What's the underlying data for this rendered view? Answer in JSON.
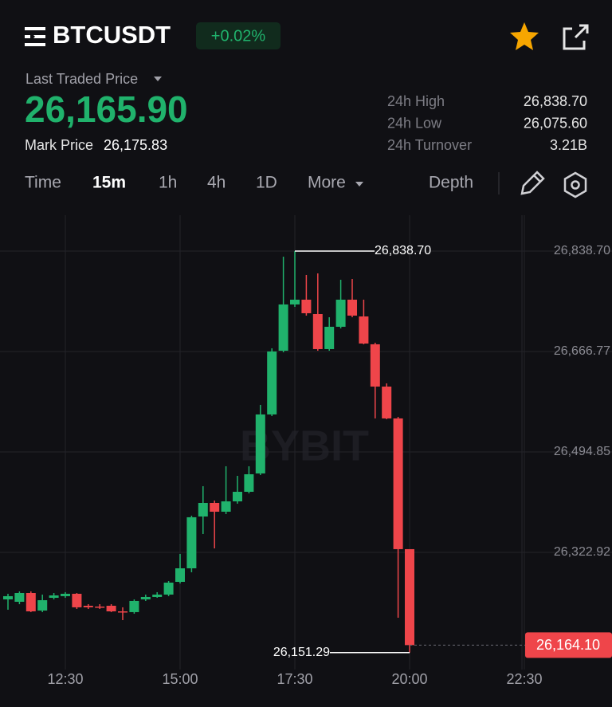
{
  "header": {
    "symbol": "BTCUSDT",
    "change": "+0.02%"
  },
  "price": {
    "label": "Last Traded Price",
    "value": "26,165.90",
    "mark_label": "Mark Price",
    "mark_value": "26,175.83"
  },
  "stats": [
    {
      "label": "24h High",
      "value": "26,838.70"
    },
    {
      "label": "24h Low",
      "value": "26,075.60"
    },
    {
      "label": "24h Turnover",
      "value": "3.21B"
    }
  ],
  "tabs": [
    "Time",
    "15m",
    "1h",
    "4h",
    "1D",
    "More",
    "Depth"
  ],
  "chart_data": {
    "type": "candlestick",
    "watermark": "BYBIT",
    "up_color": "#20b26c",
    "down_color": "#ef454a",
    "categories": [
      null,
      null,
      null,
      null,
      null,
      "12:30",
      null,
      null,
      null,
      null,
      null,
      null,
      null,
      null,
      null,
      "15:00",
      null,
      null,
      null,
      null,
      null,
      null,
      null,
      null,
      null,
      "17:30",
      null,
      null,
      null,
      null,
      null,
      null,
      null,
      null,
      null,
      "20:00",
      null,
      null,
      null,
      null,
      null,
      null,
      null,
      null,
      null,
      "22:30"
    ],
    "open": [
      26242.4,
      26238.3,
      26253.3,
      26223.3,
      26245.1,
      26247.9,
      26252.0,
      26231.5,
      26230.1,
      26231.5,
      26221.9,
      26220.6,
      26242.4,
      26246.5,
      26250.6,
      26272.4,
      26295.6,
      26384.3,
      26407.5,
      26392.5,
      26410.2,
      26426.6,
      26458.0,
      26559.0,
      26668.1,
      26747.3,
      26755.5,
      26730.9,
      26670.9,
      26709.1,
      26755.5,
      26726.8,
      26679.1,
      26606.7,
      26552.2,
      26328.4,
      null,
      null,
      null,
      null,
      null,
      null,
      null,
      null,
      null,
      null
    ],
    "high": [
      26252.0,
      26256.1,
      26256.1,
      26250.6,
      26253.3,
      26254.7,
      26253.3,
      26234.2,
      26234.2,
      26234.2,
      26228.8,
      26242.4,
      26250.6,
      26254.7,
      26273.8,
      26320.2,
      26385.7,
      26436.2,
      26411.6,
      26470.3,
      26453.9,
      26470.3,
      26575.4,
      26672.2,
      26829.1,
      26838.7,
      26797.8,
      26800.5,
      26725.4,
      26789.6,
      26790.9,
      26755.5,
      26681.8,
      26612.2,
      26554.9,
      26328.4,
      null,
      null,
      null,
      null,
      null,
      null,
      null,
      null,
      null,
      null
    ],
    "low": [
      26224.7,
      26234.2,
      26220.6,
      26220.6,
      26242.4,
      26245.1,
      26226.0,
      26226.0,
      26226.0,
      26220.6,
      26206.9,
      26217.9,
      26239.7,
      26245.1,
      26247.9,
      26269.7,
      26288.8,
      26354.3,
      26329.7,
      26388.4,
      26406.2,
      26423.9,
      26455.3,
      26556.2,
      26665.4,
      26743.2,
      26728.2,
      26668.1,
      26668.1,
      26706.3,
      26725.4,
      26679.1,
      26552.2,
      26550.8,
      26211.0,
      26151.29,
      null,
      null,
      null,
      null,
      null,
      null,
      null,
      null,
      null,
      null
    ],
    "close": [
      26247.9,
      26253.3,
      26221.9,
      26241.0,
      26249.2,
      26252.0,
      26228.8,
      26228.8,
      26228.8,
      26221.9,
      26220.6,
      26239.7,
      26246.5,
      26250.6,
      26271.1,
      26295.6,
      26383.0,
      26407.5,
      26392.5,
      26410.2,
      26426.6,
      26456.6,
      26559.0,
      26666.8,
      26747.3,
      26755.5,
      26732.3,
      26670.9,
      26709.1,
      26755.5,
      26728.2,
      26680.4,
      26606.7,
      26552.2,
      26328.4,
      26164.1,
      null,
      null,
      null,
      null,
      null,
      null,
      null,
      null,
      null,
      null
    ],
    "ylim": [
      26122.3,
      26900.1
    ],
    "yticks": [
      {
        "value": 26838.7,
        "label": "26,838.70"
      },
      {
        "value": 26666.77,
        "label": "26,666.77"
      },
      {
        "value": 26494.85,
        "label": "26,494.85"
      },
      {
        "value": 26322.92,
        "label": "26,322.92"
      }
    ],
    "grid": true,
    "high_marker": {
      "value": 26838.7,
      "label": "26,838.70"
    },
    "low_marker": {
      "value": 26151.29,
      "label": "26,151.29"
    },
    "last_price": {
      "value": 26164.1,
      "label": "26,164.10"
    }
  }
}
